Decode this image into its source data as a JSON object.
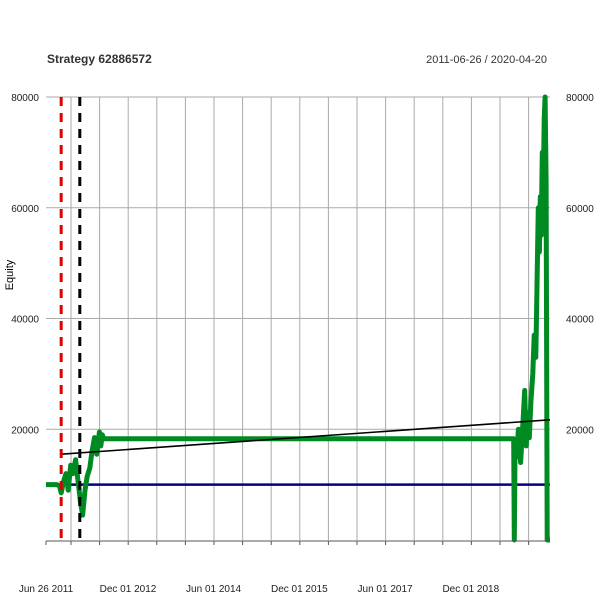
{
  "chart_data": {
    "type": "line",
    "title": "Strategy 62886572",
    "date_range": "2011-06-26 / 2020-04-20",
    "ylabel": "Equity",
    "xlabel": "",
    "x_range": [
      "2011-06-26",
      "2020-04-20"
    ],
    "ylim": [
      0,
      80000
    ],
    "y_ticks": [
      20000,
      40000,
      60000,
      80000
    ],
    "y_tick_labels": [
      "20000",
      "40000",
      "60000",
      "80000"
    ],
    "x_ticks": [
      "2011-06-26",
      "2012-12-01",
      "2014-06-01",
      "2015-12-01",
      "2017-06-01",
      "2018-12-01"
    ],
    "x_tick_labels": [
      "Jun 26 2011",
      "Dec 01 2012",
      "Jun 01 2014",
      "Dec 01 2015",
      "Jun 01 2017",
      "Dec 01 2018"
    ],
    "grid": true,
    "legend": "none",
    "series": [
      {
        "color": "#008a22",
        "points": [
          [
            "2011-06-26",
            10000
          ],
          [
            "2011-09-01",
            10000
          ],
          [
            "2011-09-20",
            9800
          ],
          [
            "2011-10-01",
            8500
          ],
          [
            "2011-10-15",
            10500
          ],
          [
            "2011-11-01",
            12000
          ],
          [
            "2011-11-15",
            9000
          ],
          [
            "2011-12-01",
            13500
          ],
          [
            "2011-12-15",
            12000
          ],
          [
            "2012-01-01",
            14500
          ],
          [
            "2012-01-15",
            11000
          ],
          [
            "2012-02-01",
            7000
          ],
          [
            "2012-02-15",
            4500
          ],
          [
            "2012-03-01",
            9000
          ],
          [
            "2012-03-15",
            11500
          ],
          [
            "2012-04-01",
            13000
          ],
          [
            "2012-04-15",
            16000
          ],
          [
            "2012-05-01",
            18500
          ],
          [
            "2012-05-15",
            15500
          ],
          [
            "2012-06-01",
            19500
          ],
          [
            "2012-06-10",
            17000
          ],
          [
            "2012-06-20",
            19000
          ],
          [
            "2012-06-28",
            18300
          ],
          [
            "2019-09-01",
            18300
          ],
          [
            "2019-09-05",
            0
          ],
          [
            "2019-09-10",
            18000
          ],
          [
            "2019-09-20",
            15000
          ],
          [
            "2019-10-01",
            20000
          ],
          [
            "2019-10-15",
            14000
          ],
          [
            "2019-11-01",
            22000
          ],
          [
            "2019-11-10",
            27000
          ],
          [
            "2019-11-20",
            17000
          ],
          [
            "2019-12-01",
            23000
          ],
          [
            "2019-12-10",
            18500
          ],
          [
            "2019-12-20",
            25000
          ],
          [
            "2020-01-01",
            30000
          ],
          [
            "2020-01-10",
            37000
          ],
          [
            "2020-01-20",
            33000
          ],
          [
            "2020-01-28",
            46000
          ],
          [
            "2020-02-05",
            60000
          ],
          [
            "2020-02-12",
            52000
          ],
          [
            "2020-02-18",
            62000
          ],
          [
            "2020-02-24",
            55000
          ],
          [
            "2020-03-02",
            70000
          ],
          [
            "2020-03-08",
            63000
          ],
          [
            "2020-03-14",
            76000
          ],
          [
            "2020-03-20",
            80000
          ],
          [
            "2020-03-26",
            65000
          ],
          [
            "2020-04-02",
            0
          ],
          [
            "2020-04-20",
            0
          ]
        ]
      },
      {
        "color": "#000000",
        "points": [
          [
            "2011-10-01",
            15500
          ],
          [
            "2020-04-20",
            21700
          ]
        ]
      },
      {
        "color": "#000080",
        "points": [
          [
            "2011-06-26",
            10000
          ],
          [
            "2020-04-20",
            10000
          ]
        ]
      }
    ],
    "vertical_markers": [
      {
        "x": "2011-10-01",
        "color": "#e00000",
        "style": "dashed"
      },
      {
        "x": "2012-01-28",
        "color": "#000000",
        "style": "dashed"
      }
    ],
    "right_axis_labels": true
  }
}
